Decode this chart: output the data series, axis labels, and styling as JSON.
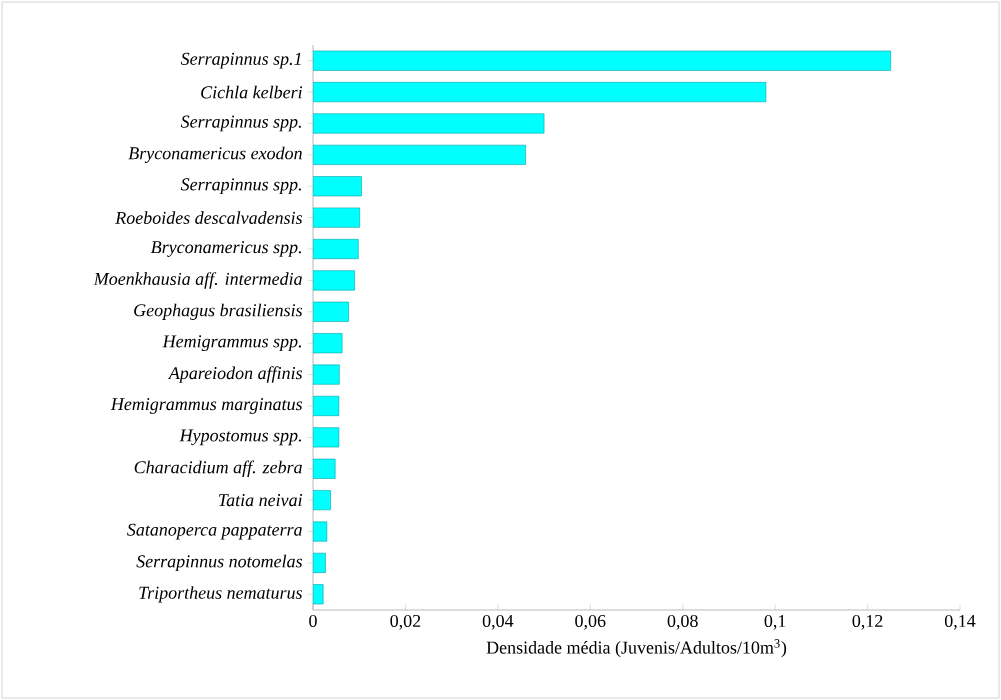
{
  "chart_data": {
    "type": "bar",
    "orientation": "horizontal",
    "categories": [
      "Serrapinnus sp.1",
      "Cichla kelberi",
      "Serrapinnus spp.",
      "Bryconamericus exodon",
      "Serrapinnus spp.",
      "Roeboides descalvadensis",
      "Bryconamericus spp.",
      "Moenkhausia aff. intermedia",
      "Geophagus brasiliensis",
      "Hemigrammus spp.",
      "Apareiodon affinis",
      "Hemigrammus marginatus",
      "Hypostomus spp.",
      "Characidium aff. zebra",
      "Tatia neivai",
      "Satanoperca pappaterra",
      "Serrapinnus notomelas",
      "Triportheus nematurus"
    ],
    "values": [
      0.125,
      0.098,
      0.05,
      0.046,
      0.0105,
      0.0101,
      0.0098,
      0.009,
      0.0077,
      0.0063,
      0.0057,
      0.0056,
      0.0056,
      0.0048,
      0.0038,
      0.003,
      0.0027,
      0.0022
    ],
    "color": "#00ffff",
    "xlabel": "Densidade média (Juvenis/Adultos/10m$^{3}$)",
    "xlim": [
      0,
      0.14
    ],
    "xticks": [
      0,
      {
        "value": 0.02,
        "label": "0,02"
      },
      {
        "value": 0.04,
        "label": "0,04"
      },
      {
        "value": 0.06,
        "label": "0,06"
      },
      {
        "value": 0.08,
        "label": "0,08"
      },
      {
        "value": 0.1,
        "label": "0,1"
      },
      {
        "value": 0.12,
        "label": "0,12"
      },
      {
        "value": 0.14,
        "label": "0,14"
      }
    ]
  }
}
